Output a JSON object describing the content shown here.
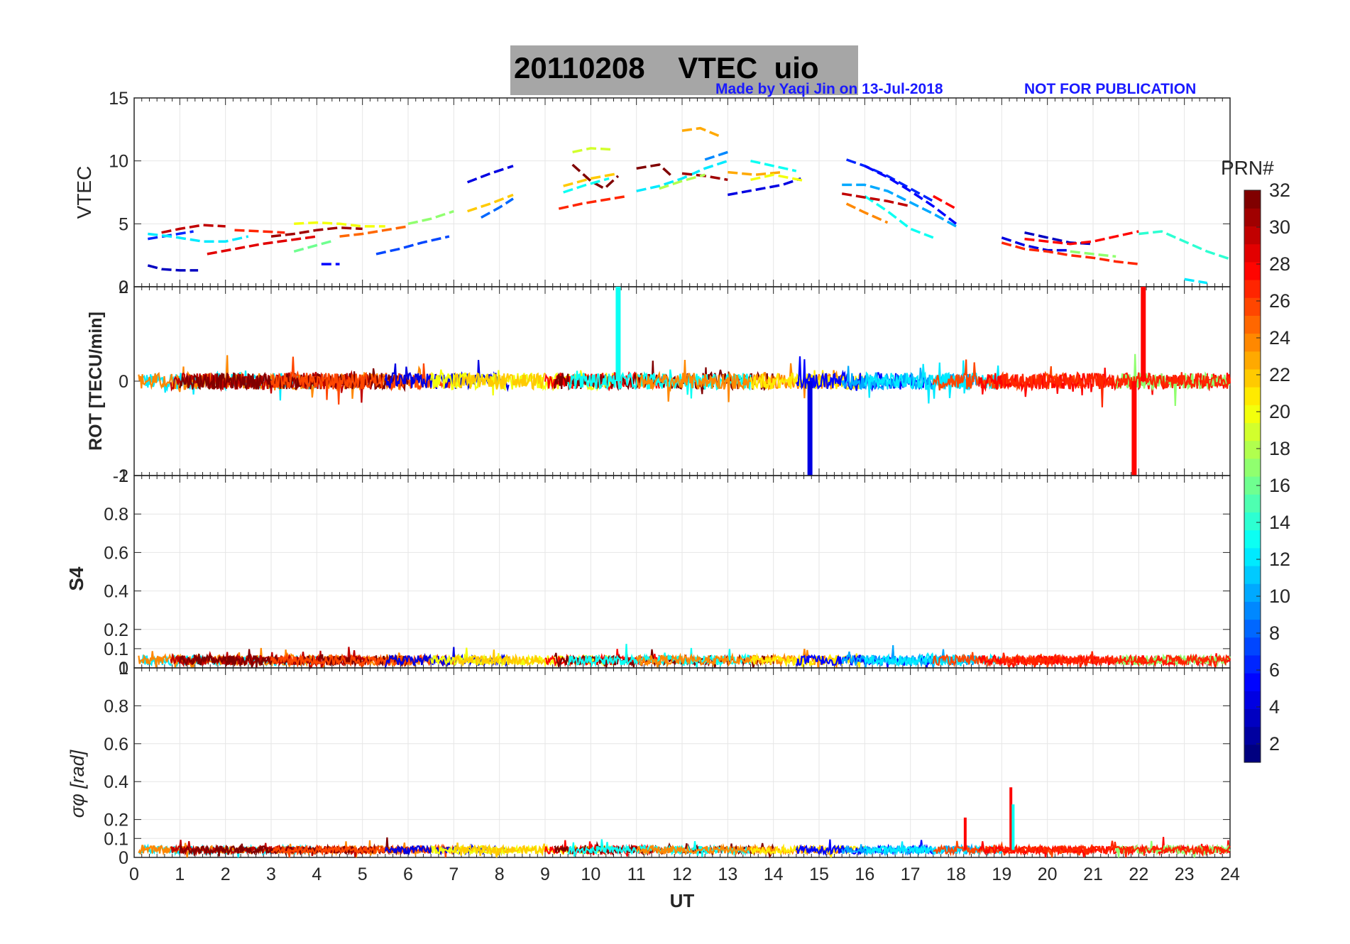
{
  "figure": {
    "date": "20110208",
    "title_quantity": "VTEC",
    "station": "uio",
    "credit": "Made by Yaqi Jin on 13-Jul-2018",
    "notice": "NOT FOR PUBLICATION",
    "colors": {
      "title_bg": "#a6a6a6",
      "credit": "#1a1aff",
      "grid": "#e6e6e6"
    }
  },
  "chart_data": [
    {
      "type": "line",
      "panel": "vtec",
      "ylabel": "VTEC",
      "xlabel": "",
      "xlim": [
        0,
        24
      ],
      "ylim": [
        0,
        15
      ],
      "yticks": [
        "0",
        "5",
        "10",
        "15"
      ],
      "series": [
        {
          "name": "PRN 3",
          "prn": 3,
          "x": [
            0.3,
            0.6,
            1.0,
            1.4
          ],
          "values": [
            1.7,
            1.4,
            1.3,
            1.3
          ]
        },
        {
          "name": "PRN 6",
          "prn": 6,
          "x": [
            0.3,
            0.8,
            1.3
          ],
          "values": [
            3.8,
            4.1,
            4.4
          ]
        },
        {
          "name": "PRN 30",
          "prn": 30,
          "x": [
            0.6,
            1.0,
            1.5,
            2.0
          ],
          "values": [
            4.3,
            4.6,
            4.9,
            4.8
          ]
        },
        {
          "name": "PRN 29",
          "prn": 29,
          "x": [
            1.6,
            2.2,
            2.8,
            3.4,
            4.0
          ],
          "values": [
            2.6,
            3.0,
            3.4,
            3.7,
            4.0
          ]
        },
        {
          "name": "PRN 27",
          "prn": 27,
          "x": [
            2.2,
            2.8,
            3.3
          ],
          "values": [
            4.5,
            4.4,
            4.3
          ]
        },
        {
          "name": "PRN 12",
          "prn": 12,
          "x": [
            0.3,
            0.8,
            1.5,
            2.0,
            2.5
          ],
          "values": [
            4.2,
            4.0,
            3.6,
            3.6,
            4.0
          ]
        },
        {
          "name": "PRN 31",
          "prn": 31,
          "x": [
            3.0,
            3.5,
            4.0,
            4.5,
            5.0
          ],
          "values": [
            4.0,
            4.2,
            4.5,
            4.7,
            4.6
          ]
        },
        {
          "name": "PRN 20",
          "prn": 20,
          "x": [
            3.5,
            4.0,
            4.5,
            5.0,
            5.5
          ],
          "values": [
            5.0,
            5.1,
            5.0,
            4.8,
            4.8
          ]
        },
        {
          "name": "PRN 16",
          "prn": 16,
          "x": [
            3.5,
            4.0,
            4.4
          ],
          "values": [
            2.8,
            3.3,
            3.7
          ]
        },
        {
          "name": "PRN 5",
          "prn": 5,
          "x": [
            4.1,
            4.5
          ],
          "values": [
            1.8,
            1.8
          ]
        },
        {
          "name": "PRN 25",
          "prn": 25,
          "x": [
            4.5,
            5.0,
            5.5,
            6.0
          ],
          "values": [
            4.0,
            4.2,
            4.5,
            4.8
          ]
        },
        {
          "name": "PRN 7",
          "prn": 7,
          "x": [
            5.3,
            5.8,
            6.3,
            6.9
          ],
          "values": [
            2.6,
            3.0,
            3.5,
            4.0
          ]
        },
        {
          "name": "PRN 17",
          "prn": 17,
          "x": [
            6.0,
            6.5,
            7.0
          ],
          "values": [
            5.0,
            5.4,
            6.0
          ]
        },
        {
          "name": "PRN 22",
          "prn": 22,
          "x": [
            7.3,
            7.8,
            8.3
          ],
          "values": [
            6.0,
            6.6,
            7.3
          ]
        },
        {
          "name": "PRN 4",
          "prn": 4,
          "x": [
            7.3,
            7.8,
            8.3
          ],
          "values": [
            8.3,
            9.0,
            9.6
          ]
        },
        {
          "name": "PRN 8",
          "prn": 8,
          "x": [
            7.6,
            8.0,
            8.3
          ],
          "values": [
            5.5,
            6.3,
            7.0
          ]
        },
        {
          "name": "PRN 19",
          "prn": 19,
          "x": [
            9.6,
            10.0,
            10.5
          ],
          "values": [
            10.7,
            11.0,
            10.9
          ]
        },
        {
          "name": "PRN 32",
          "prn": 32,
          "x": [
            9.6,
            10.0,
            10.3,
            10.6
          ],
          "values": [
            9.7,
            8.4,
            7.8,
            8.8
          ]
        },
        {
          "name": "PRN 27",
          "prn": 27,
          "x": [
            9.3,
            9.8,
            10.3,
            10.8
          ],
          "values": [
            6.2,
            6.6,
            6.9,
            7.2
          ]
        },
        {
          "name": "PRN 13",
          "prn": 13,
          "x": [
            9.4,
            9.9,
            10.4
          ],
          "values": [
            7.5,
            8.1,
            8.6
          ]
        },
        {
          "name": "PRN 22",
          "prn": 22,
          "x": [
            9.4,
            10.0,
            10.6
          ],
          "values": [
            8.0,
            8.6,
            9.0
          ]
        },
        {
          "name": "PRN 12",
          "prn": 12,
          "x": [
            11.0,
            11.5,
            12.0,
            12.5,
            13.0
          ],
          "values": [
            7.6,
            8.0,
            8.6,
            9.4,
            10.0
          ]
        },
        {
          "name": "PRN 23",
          "prn": 23,
          "x": [
            12.0,
            12.4,
            12.8
          ],
          "values": [
            12.4,
            12.6,
            12.0
          ]
        },
        {
          "name": "PRN 32",
          "prn": 32,
          "x": [
            11.0,
            11.5,
            11.8
          ],
          "values": [
            9.4,
            9.7,
            8.7
          ]
        },
        {
          "name": "PRN 9",
          "prn": 9,
          "x": [
            12.5,
            13.0
          ],
          "values": [
            10.1,
            10.7
          ]
        },
        {
          "name": "PRN 31",
          "prn": 31,
          "x": [
            12.0,
            12.5,
            13.0
          ],
          "values": [
            9.0,
            8.8,
            8.5
          ]
        },
        {
          "name": "PRN 18",
          "prn": 18,
          "x": [
            11.5,
            12.0,
            12.5
          ],
          "values": [
            7.8,
            8.4,
            8.9
          ]
        },
        {
          "name": "PRN 23",
          "prn": 23,
          "x": [
            13.0,
            13.6,
            14.2
          ],
          "values": [
            9.1,
            8.9,
            9.1
          ]
        },
        {
          "name": "PRN 13",
          "prn": 13,
          "x": [
            13.5,
            14.0,
            14.5
          ],
          "values": [
            10.0,
            9.6,
            9.2
          ]
        },
        {
          "name": "PRN 4",
          "prn": 4,
          "x": [
            13.0,
            13.6,
            14.2,
            14.6
          ],
          "values": [
            7.3,
            7.7,
            8.1,
            8.6
          ]
        },
        {
          "name": "PRN 20",
          "prn": 20,
          "x": [
            13.5,
            14.0,
            14.7
          ],
          "values": [
            8.5,
            8.9,
            8.4
          ]
        },
        {
          "name": "PRN 6",
          "prn": 6,
          "x": [
            15.6,
            16.0,
            16.5,
            17.0,
            17.5
          ],
          "values": [
            10.1,
            9.6,
            8.8,
            7.8,
            6.8
          ]
        },
        {
          "name": "PRN 5",
          "prn": 5,
          "x": [
            16.0,
            16.5,
            17.0,
            17.5,
            18.0
          ],
          "values": [
            9.6,
            8.7,
            7.6,
            6.4,
            5.0
          ]
        },
        {
          "name": "PRN 10",
          "prn": 10,
          "x": [
            15.5,
            16.0,
            16.5,
            17.0,
            17.5,
            18.0
          ],
          "values": [
            8.1,
            8.1,
            7.6,
            6.7,
            5.8,
            4.8
          ]
        },
        {
          "name": "PRN 13",
          "prn": 13,
          "x": [
            16.0,
            16.5,
            17.0,
            17.5
          ],
          "values": [
            7.2,
            6.0,
            4.6,
            3.9
          ]
        },
        {
          "name": "PRN 24",
          "prn": 24,
          "x": [
            15.6,
            16.0,
            16.5
          ],
          "values": [
            6.6,
            5.9,
            5.1
          ]
        },
        {
          "name": "PRN 30",
          "prn": 30,
          "x": [
            15.5,
            16.0,
            16.5,
            17.0
          ],
          "values": [
            7.4,
            7.1,
            6.8,
            6.4
          ]
        },
        {
          "name": "PRN 28",
          "prn": 28,
          "x": [
            17.5,
            18.0
          ],
          "values": [
            7.2,
            6.2
          ]
        },
        {
          "name": "PRN 3",
          "prn": 3,
          "x": [
            19.5,
            20.0,
            20.5,
            21.0
          ],
          "values": [
            4.3,
            3.9,
            3.5,
            3.4
          ]
        },
        {
          "name": "PRN 4",
          "prn": 4,
          "x": [
            19.0,
            19.5,
            20.0,
            20.5
          ],
          "values": [
            3.9,
            3.3,
            2.9,
            2.9
          ]
        },
        {
          "name": "PRN 28",
          "prn": 28,
          "x": [
            19.5,
            20.0,
            20.5,
            21.0,
            21.5,
            22.0
          ],
          "values": [
            3.8,
            3.6,
            3.4,
            3.6,
            4.0,
            4.4
          ]
        },
        {
          "name": "PRN 27",
          "prn": 27,
          "x": [
            19.0,
            19.5,
            20.0,
            20.5,
            21.0,
            21.5,
            22.0
          ],
          "values": [
            3.5,
            3.0,
            2.8,
            2.5,
            2.3,
            2.0,
            1.8
          ]
        },
        {
          "name": "PRN 17",
          "prn": 17,
          "x": [
            20.5,
            21.0,
            21.5
          ],
          "values": [
            2.8,
            2.6,
            2.4
          ]
        },
        {
          "name": "PRN 14",
          "prn": 14,
          "x": [
            22.0,
            22.5,
            23.0,
            23.5,
            24.0
          ],
          "values": [
            4.2,
            4.4,
            3.6,
            2.8,
            2.2
          ]
        },
        {
          "name": "PRN 12",
          "prn": 12,
          "x": [
            23.0,
            23.5
          ],
          "values": [
            0.6,
            0.3
          ]
        }
      ]
    },
    {
      "type": "line",
      "panel": "rot",
      "ylabel": "ROT [TECU/min]",
      "xlabel": "",
      "xlim": [
        0,
        24
      ],
      "ylim": [
        -2,
        2
      ],
      "yticks": [
        "-2",
        "0",
        "2"
      ],
      "spikes": [
        {
          "prn": 13,
          "x": 10.6,
          "y": 2.0
        },
        {
          "prn": 4,
          "x": 14.8,
          "y": -2.0
        },
        {
          "prn": 28,
          "x": 21.9,
          "y": -2.0
        },
        {
          "prn": 28,
          "x": 22.1,
          "y": 2.0
        }
      ],
      "note": "dense noise band around 0 with amplitude about 0.2 TECU/min"
    },
    {
      "type": "line",
      "panel": "s4",
      "ylabel": "S4",
      "xlabel": "",
      "xlim": [
        0,
        24
      ],
      "ylim": [
        0,
        1
      ],
      "yticks": [
        "0",
        "0.1",
        "0.2",
        "0.4",
        "0.6",
        "0.8",
        "1"
      ],
      "baseline": 0.04,
      "note": "all PRNs below about 0.1"
    },
    {
      "type": "line",
      "panel": "sigma_phi",
      "ylabel": "σφ [rad]",
      "xlabel": "UT",
      "xlim": [
        0,
        24
      ],
      "ylim": [
        0,
        1
      ],
      "yticks": [
        "0",
        "0.1",
        "0.2",
        "0.4",
        "0.6",
        "0.8",
        "1"
      ],
      "xticks": [
        "0",
        "1",
        "2",
        "3",
        "4",
        "5",
        "6",
        "7",
        "8",
        "9",
        "10",
        "11",
        "12",
        "13",
        "14",
        "15",
        "16",
        "17",
        "18",
        "19",
        "20",
        "21",
        "22",
        "23",
        "24"
      ],
      "baseline": 0.04,
      "spikes": [
        {
          "prn": 28,
          "x": 18.2,
          "y": 0.21
        },
        {
          "prn": 28,
          "x": 19.2,
          "y": 0.37
        },
        {
          "prn": 13,
          "x": 19.25,
          "y": 0.28
        }
      ]
    },
    {
      "type": "heatmap",
      "panel": "colorbar",
      "label": "PRN#",
      "range": [
        1,
        32
      ],
      "ticks": [
        "2",
        "4",
        "6",
        "8",
        "10",
        "12",
        "14",
        "16",
        "18",
        "20",
        "22",
        "24",
        "26",
        "28",
        "30",
        "32"
      ],
      "colormap": "jet"
    }
  ]
}
